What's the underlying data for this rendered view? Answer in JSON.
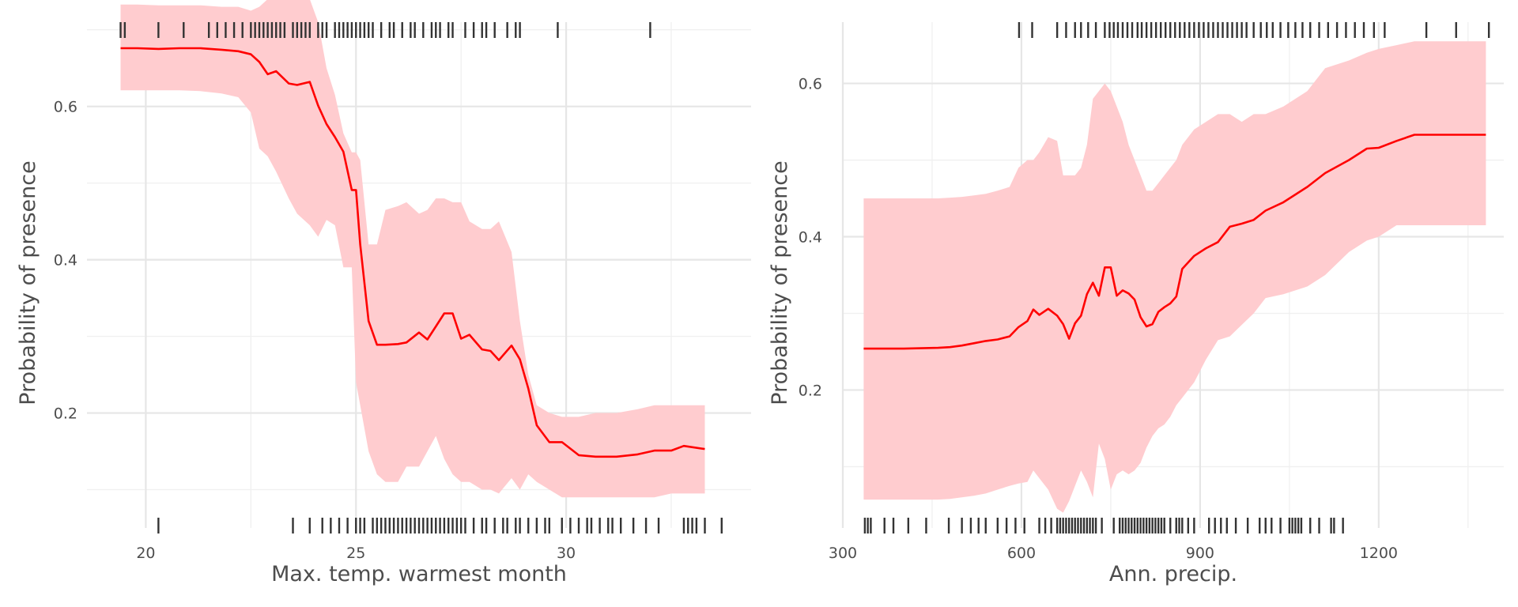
{
  "chart_data": [
    {
      "type": "line",
      "xlabel": "Max. temp. warmest month",
      "ylabel": "Probability of presence",
      "xlim": [
        18.6,
        34.4
      ],
      "ylim": [
        0.05,
        0.71
      ],
      "x_ticks": [
        20,
        25,
        30
      ],
      "y_ticks": [
        0.2,
        0.4,
        0.6
      ],
      "x_minor_ticks": [
        22.5,
        27.5,
        32.5
      ],
      "y_minor_ticks": [
        0.1,
        0.3,
        0.5,
        0.7
      ],
      "grid": true,
      "legend": "none",
      "colors": {
        "line": "#ff0000",
        "band": "#ffcccf",
        "rug": "#333333"
      },
      "series": [
        {
          "x": [
            19.4,
            19.8,
            20.3,
            20.8,
            21.3,
            21.8,
            22.2,
            22.5,
            22.7,
            22.9,
            23.1,
            23.4,
            23.6,
            23.9,
            24.1,
            24.3,
            24.5,
            24.7,
            24.9,
            25.0,
            25.1,
            25.3,
            25.5,
            25.7,
            26.0,
            26.2,
            26.5,
            26.7,
            26.9,
            27.1,
            27.3,
            27.5,
            27.7,
            28.0,
            28.2,
            28.4,
            28.7,
            28.9,
            29.1,
            29.3,
            29.6,
            29.9,
            30.3,
            30.7,
            31.2,
            31.7,
            32.1,
            32.5,
            32.8,
            33.3
          ],
          "y": [
            0.676,
            0.676,
            0.675,
            0.676,
            0.676,
            0.674,
            0.672,
            0.668,
            0.658,
            0.642,
            0.646,
            0.63,
            0.628,
            0.632,
            0.601,
            0.577,
            0.56,
            0.541,
            0.491,
            0.491,
            0.42,
            0.32,
            0.289,
            0.289,
            0.29,
            0.292,
            0.305,
            0.296,
            0.313,
            0.33,
            0.33,
            0.297,
            0.302,
            0.283,
            0.281,
            0.269,
            0.288,
            0.27,
            0.232,
            0.184,
            0.162,
            0.162,
            0.145,
            0.143,
            0.143,
            0.146,
            0.151,
            0.151,
            0.157,
            0.153
          ],
          "lower": [
            0.621,
            0.621,
            0.621,
            0.621,
            0.62,
            0.617,
            0.612,
            0.592,
            0.545,
            0.535,
            0.515,
            0.48,
            0.46,
            0.445,
            0.43,
            0.452,
            0.445,
            0.39,
            0.39,
            0.24,
            0.21,
            0.15,
            0.12,
            0.11,
            0.11,
            0.13,
            0.13,
            0.15,
            0.17,
            0.14,
            0.12,
            0.11,
            0.11,
            0.1,
            0.1,
            0.095,
            0.115,
            0.1,
            0.12,
            0.11,
            0.1,
            0.09,
            0.09,
            0.09,
            0.09,
            0.09,
            0.09,
            0.095,
            0.095,
            0.095
          ],
          "upper": [
            0.733,
            0.733,
            0.732,
            0.732,
            0.732,
            0.73,
            0.73,
            0.725,
            0.73,
            0.74,
            0.745,
            0.75,
            0.745,
            0.74,
            0.71,
            0.65,
            0.615,
            0.565,
            0.54,
            0.54,
            0.53,
            0.42,
            0.42,
            0.465,
            0.47,
            0.475,
            0.46,
            0.465,
            0.48,
            0.48,
            0.475,
            0.475,
            0.45,
            0.44,
            0.44,
            0.45,
            0.41,
            0.32,
            0.25,
            0.21,
            0.2,
            0.195,
            0.195,
            0.2,
            0.2,
            0.205,
            0.21,
            0.21,
            0.21,
            0.21
          ]
        }
      ],
      "rug_top": [
        19.4,
        19.5,
        20.3,
        20.9,
        21.5,
        21.7,
        21.9,
        22.1,
        22.3,
        22.5,
        22.6,
        22.7,
        22.8,
        22.9,
        23.0,
        23.1,
        23.2,
        23.3,
        23.5,
        23.6,
        23.7,
        23.8,
        23.9,
        24.1,
        24.2,
        24.3,
        24.5,
        24.6,
        24.7,
        24.8,
        24.9,
        25.0,
        25.1,
        25.2,
        25.3,
        25.4,
        25.6,
        25.8,
        25.9,
        26.1,
        26.3,
        26.4,
        26.6,
        26.8,
        26.9,
        27.0,
        27.2,
        27.3,
        27.6,
        27.8,
        28.0,
        28.1,
        28.3,
        28.6,
        28.8,
        28.9,
        29.8,
        32.0
      ],
      "rug_bottom": [
        20.3,
        23.5,
        23.9,
        24.2,
        24.4,
        24.6,
        24.8,
        25.0,
        25.1,
        25.2,
        25.4,
        25.5,
        25.6,
        25.7,
        25.8,
        25.9,
        26.0,
        26.1,
        26.2,
        26.3,
        26.4,
        26.5,
        26.6,
        26.7,
        26.8,
        26.9,
        27.0,
        27.1,
        27.2,
        27.3,
        27.4,
        27.5,
        27.6,
        27.8,
        28.0,
        28.1,
        28.3,
        28.5,
        28.6,
        28.8,
        28.9,
        29.1,
        29.3,
        29.5,
        29.6,
        29.9,
        30.1,
        30.3,
        30.5,
        30.6,
        30.8,
        31.0,
        31.1,
        31.3,
        31.6,
        31.9,
        32.2,
        32.8,
        32.9,
        33.0,
        33.1,
        33.3,
        33.7
      ]
    },
    {
      "type": "line",
      "xlabel": "Ann. precip.",
      "ylabel": "Probability of presence",
      "xlim": [
        300,
        1410
      ],
      "ylim": [
        0.02,
        0.68
      ],
      "x_ticks": [
        300,
        600,
        900,
        1200
      ],
      "y_ticks": [
        0.2,
        0.4,
        0.6
      ],
      "x_minor_ticks": [
        450,
        750,
        1050,
        1350
      ],
      "y_minor_ticks": [
        0.1,
        0.3,
        0.5
      ],
      "grid": true,
      "legend": "none",
      "colors": {
        "line": "#ff0000",
        "band": "#ffcccf",
        "rug": "#333333"
      },
      "series": [
        {
          "x": [
            335,
            400,
            460,
            480,
            500,
            520,
            540,
            560,
            580,
            595,
            610,
            620,
            630,
            645,
            660,
            670,
            680,
            690,
            700,
            710,
            720,
            730,
            740,
            750,
            760,
            770,
            780,
            790,
            800,
            810,
            820,
            830,
            840,
            850,
            860,
            870,
            890,
            910,
            930,
            950,
            970,
            990,
            1010,
            1040,
            1080,
            1110,
            1150,
            1180,
            1200,
            1230,
            1260,
            1300,
            1350,
            1380
          ],
          "y": [
            0.254,
            0.254,
            0.255,
            0.256,
            0.258,
            0.261,
            0.264,
            0.266,
            0.27,
            0.282,
            0.29,
            0.305,
            0.298,
            0.306,
            0.297,
            0.286,
            0.267,
            0.287,
            0.297,
            0.325,
            0.34,
            0.323,
            0.36,
            0.36,
            0.323,
            0.33,
            0.326,
            0.318,
            0.295,
            0.283,
            0.286,
            0.302,
            0.308,
            0.313,
            0.322,
            0.358,
            0.375,
            0.385,
            0.393,
            0.413,
            0.417,
            0.422,
            0.434,
            0.445,
            0.465,
            0.483,
            0.5,
            0.515,
            0.516,
            0.525,
            0.533,
            0.533,
            0.533,
            0.533
          ],
          "lower": [
            0.057,
            0.057,
            0.057,
            0.058,
            0.06,
            0.062,
            0.065,
            0.07,
            0.075,
            0.078,
            0.08,
            0.095,
            0.085,
            0.07,
            0.045,
            0.04,
            0.055,
            0.075,
            0.095,
            0.08,
            0.06,
            0.13,
            0.11,
            0.07,
            0.09,
            0.095,
            0.09,
            0.095,
            0.105,
            0.125,
            0.14,
            0.15,
            0.155,
            0.165,
            0.18,
            0.19,
            0.21,
            0.24,
            0.265,
            0.27,
            0.285,
            0.3,
            0.32,
            0.325,
            0.335,
            0.35,
            0.38,
            0.395,
            0.4,
            0.415,
            0.415,
            0.415,
            0.415,
            0.415
          ],
          "upper": [
            0.45,
            0.45,
            0.45,
            0.451,
            0.452,
            0.454,
            0.456,
            0.46,
            0.465,
            0.49,
            0.5,
            0.5,
            0.51,
            0.53,
            0.525,
            0.48,
            0.48,
            0.48,
            0.49,
            0.52,
            0.58,
            0.59,
            0.6,
            0.59,
            0.57,
            0.55,
            0.52,
            0.5,
            0.48,
            0.46,
            0.46,
            0.47,
            0.48,
            0.49,
            0.5,
            0.52,
            0.54,
            0.55,
            0.56,
            0.56,
            0.55,
            0.56,
            0.56,
            0.57,
            0.59,
            0.62,
            0.63,
            0.64,
            0.645,
            0.65,
            0.655,
            0.655,
            0.655,
            0.655
          ]
        }
      ],
      "rug_top": [
        596,
        618,
        660,
        675,
        690,
        700,
        712,
        725,
        740,
        748,
        755,
        762,
        770,
        778,
        786,
        795,
        802,
        810,
        818,
        826,
        834,
        842,
        850,
        858,
        866,
        874,
        882,
        890,
        898,
        906,
        914,
        922,
        930,
        938,
        946,
        954,
        962,
        970,
        978,
        990,
        1002,
        1012,
        1022,
        1035,
        1048,
        1060,
        1072,
        1085,
        1100,
        1115,
        1130,
        1145,
        1160,
        1175,
        1192,
        1210,
        1280,
        1330,
        1385
      ],
      "rug_bottom": [
        337,
        342,
        347,
        370,
        385,
        410,
        440,
        478,
        500,
        515,
        528,
        540,
        560,
        575,
        590,
        605,
        630,
        640,
        650,
        660,
        665,
        670,
        675,
        680,
        685,
        690,
        695,
        700,
        705,
        710,
        715,
        720,
        725,
        735,
        755,
        765,
        770,
        775,
        780,
        785,
        790,
        795,
        800,
        805,
        810,
        815,
        820,
        825,
        830,
        835,
        840,
        850,
        860,
        865,
        870,
        880,
        890,
        915,
        925,
        935,
        945,
        960,
        980,
        1000,
        1010,
        1020,
        1035,
        1050,
        1055,
        1060,
        1065,
        1070,
        1085,
        1100,
        1120,
        1125,
        1140
      ]
    }
  ]
}
